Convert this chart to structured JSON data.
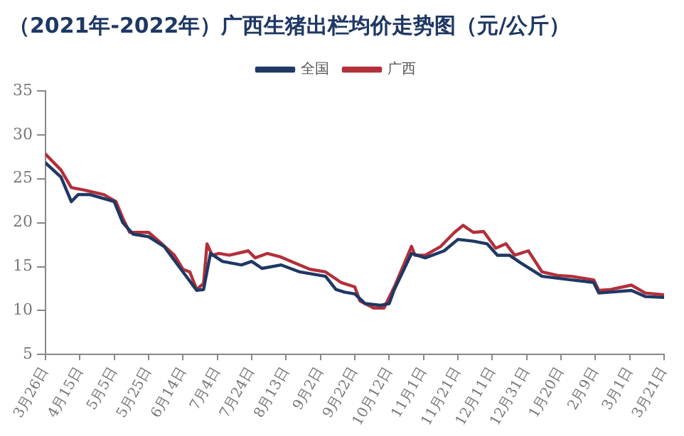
{
  "chart_data": {
    "type": "line",
    "title": "（2021年-2022年）广西生猪出栏均价走势图（元/公斤）",
    "xlim": [
      "2021-03-26",
      "2022-03-21"
    ],
    "xticks": [
      {
        "value": "2021-03-26",
        "label": "3月26日"
      },
      {
        "value": "2021-04-15",
        "label": "4月15日"
      },
      {
        "value": "2021-05-05",
        "label": "5月5日"
      },
      {
        "value": "2021-05-25",
        "label": "5月25日"
      },
      {
        "value": "2021-06-14",
        "label": "6月14日"
      },
      {
        "value": "2021-07-04",
        "label": "7月4日"
      },
      {
        "value": "2021-07-24",
        "label": "7月24日"
      },
      {
        "value": "2021-08-13",
        "label": "8月13日"
      },
      {
        "value": "2021-09-02",
        "label": "9月2日"
      },
      {
        "value": "2021-09-22",
        "label": "9月22日"
      },
      {
        "value": "2021-10-12",
        "label": "10月12日"
      },
      {
        "value": "2021-11-01",
        "label": "11月1日"
      },
      {
        "value": "2021-11-21",
        "label": "11月21日"
      },
      {
        "value": "2021-12-11",
        "label": "12月11日"
      },
      {
        "value": "2021-12-31",
        "label": "12月31日"
      },
      {
        "value": "2022-01-20",
        "label": "1月20日"
      },
      {
        "value": "2022-02-09",
        "label": "2月9日"
      },
      {
        "value": "2022-03-01",
        "label": "3月1日"
      },
      {
        "value": "2022-03-21",
        "label": "3月21日"
      }
    ],
    "ylim": [
      5,
      35
    ],
    "yticks": [
      5,
      10,
      15,
      20,
      25,
      30,
      35
    ],
    "legend": "top",
    "grid": false,
    "marker": "none",
    "line_style": "solid",
    "series": [
      {
        "name": "全国",
        "color": "#1f3864",
        "x": [
          "2021-03-26",
          "2021-04-04",
          "2021-04-10",
          "2021-04-14",
          "2021-04-21",
          "2021-05-05",
          "2021-05-10",
          "2021-05-16",
          "2021-05-25",
          "2021-06-03",
          "2021-06-14",
          "2021-06-22",
          "2021-06-26",
          "2021-06-30",
          "2021-07-07",
          "2021-07-18",
          "2021-07-24",
          "2021-07-30",
          "2021-08-10",
          "2021-08-21",
          "2021-09-05",
          "2021-09-11",
          "2021-09-16",
          "2021-09-22",
          "2021-09-28",
          "2021-10-07",
          "2021-10-12",
          "2021-10-15",
          "2021-10-25",
          "2021-11-02",
          "2021-11-13",
          "2021-11-21",
          "2021-11-30",
          "2021-12-08",
          "2021-12-14",
          "2021-12-21",
          "2021-12-27",
          "2022-01-09",
          "2022-01-26",
          "2022-02-08",
          "2022-02-11",
          "2022-03-02",
          "2022-03-10",
          "2022-03-21"
        ],
        "values": [
          26.8,
          25.2,
          22.4,
          23.2,
          23.2,
          22.4,
          20,
          18.7,
          18.4,
          17.3,
          14.4,
          12.3,
          12.4,
          16.5,
          15.6,
          15.2,
          15.6,
          14.8,
          15.2,
          14.4,
          13.9,
          12.4,
          12.1,
          11.9,
          10.8,
          10.6,
          10.8,
          12.4,
          16.5,
          16,
          16.8,
          18.1,
          17.9,
          17.6,
          16.3,
          16.3,
          15.5,
          13.9,
          13.5,
          13.2,
          12,
          12.3,
          11.6,
          11.5
        ]
      },
      {
        "name": "广西",
        "color": "#b2303a",
        "x": [
          "2021-03-26",
          "2021-04-04",
          "2021-04-10",
          "2021-04-18",
          "2021-04-29",
          "2021-05-06",
          "2021-05-10",
          "2021-05-14",
          "2021-05-25",
          "2021-05-31",
          "2021-06-09",
          "2021-06-14",
          "2021-06-18",
          "2021-06-22",
          "2021-06-26",
          "2021-06-28",
          "2021-07-01",
          "2021-07-05",
          "2021-07-11",
          "2021-07-22",
          "2021-07-26",
          "2021-08-02",
          "2021-08-10",
          "2021-08-17",
          "2021-08-27",
          "2021-09-05",
          "2021-09-14",
          "2021-09-22",
          "2021-09-25",
          "2021-10-03",
          "2021-10-09",
          "2021-10-15",
          "2021-10-25",
          "2021-10-27",
          "2021-11-02",
          "2021-11-11",
          "2021-11-19",
          "2021-11-24",
          "2021-11-30",
          "2021-12-06",
          "2021-12-13",
          "2021-12-19",
          "2021-12-24",
          "2022-01-01",
          "2022-01-09",
          "2022-01-18",
          "2022-01-26",
          "2022-02-08",
          "2022-02-11",
          "2022-02-18",
          "2022-03-02",
          "2022-03-10",
          "2022-03-21"
        ],
        "values": [
          27.8,
          26,
          24,
          23.7,
          23.2,
          22.4,
          20.5,
          18.9,
          18.9,
          17.9,
          16.3,
          14.7,
          14.4,
          12.4,
          13.1,
          17.6,
          16.3,
          16.5,
          16.3,
          16.8,
          16,
          16.5,
          16.1,
          15.5,
          14.7,
          14.4,
          13.2,
          12.7,
          11.1,
          10.3,
          10.3,
          12.7,
          17.3,
          16.3,
          16.3,
          17.3,
          18.9,
          19.7,
          18.9,
          19,
          17.1,
          17.6,
          16.3,
          16.8,
          14.4,
          14,
          13.9,
          13.5,
          12.3,
          12.4,
          12.9,
          12,
          11.8
        ]
      }
    ]
  }
}
